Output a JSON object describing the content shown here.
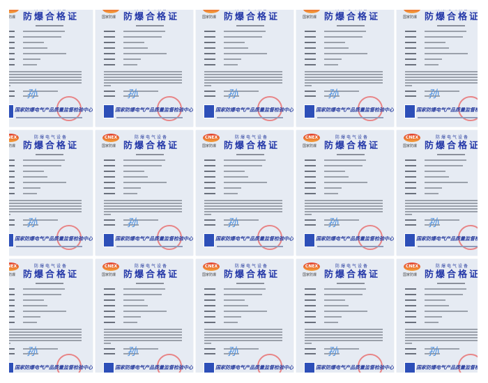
{
  "certificate": {
    "logo_text": "CNEX",
    "logo_subtext": "国家防爆",
    "subtitle": "防爆电气设备",
    "title": "防爆合格证",
    "signature": "孙",
    "issuer": "国家防爆电气产品质量监督检验中心",
    "colors": {
      "title": "#2438a8",
      "stamp": "#e86a6a",
      "logo": "#e23a2a",
      "background": "#e6ebf3"
    }
  },
  "grid": {
    "columns": 5,
    "rows": 3
  }
}
